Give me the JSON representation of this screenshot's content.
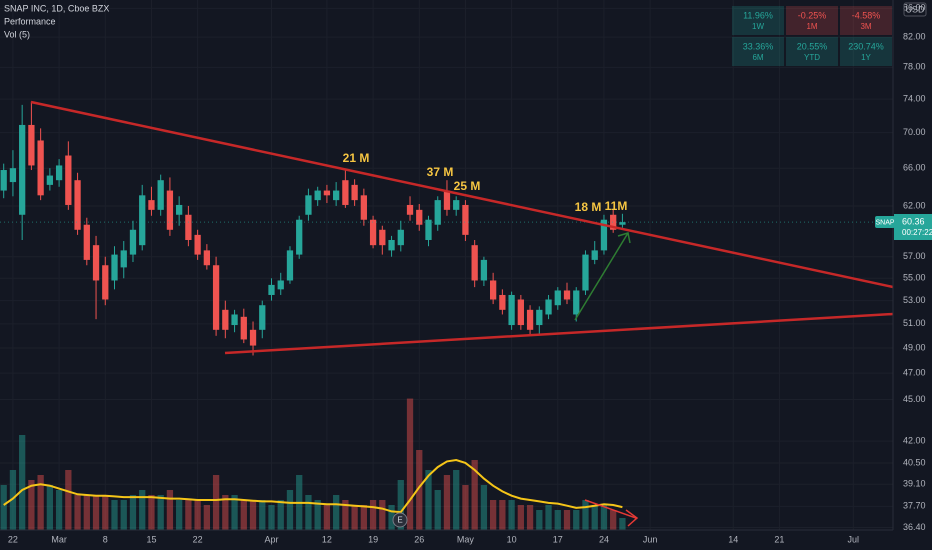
{
  "chart_data": {
    "type": "candlestick",
    "title": "SNAP INC, 1D, Cboe BZX",
    "indicator_labels": [
      "Performance",
      "Vol (5)"
    ],
    "symbol": "SNAP",
    "currency": "USD",
    "countdown": "00:27:22",
    "earnings_marker": "E",
    "log_scale": true,
    "grid": true,
    "up_color": "#26a69a",
    "down_color": "#ef5350",
    "ma_color": "#f5c518",
    "open": [
      63.6,
      64.5,
      61.1,
      70.9,
      69.1,
      64.2,
      64.7,
      67.4,
      64.7,
      60.1,
      58.1,
      56.2,
      54.8,
      56,
      57.2,
      58.1,
      62.6,
      61.6,
      63.6,
      61.1,
      61.1,
      59.1,
      57.6,
      56.2,
      52.2,
      50.9,
      51.6,
      50.5,
      50.5,
      53.5,
      54,
      54.8,
      57.2,
      61.1,
      62.6,
      63.6,
      62.6,
      64.7,
      64.2,
      63.1,
      60.6,
      59.6,
      57.6,
      58.1,
      62.1,
      61.6,
      58.6,
      60.1,
      63.6,
      61.6,
      62.1,
      58.1,
      54.8,
      54.8,
      53.5,
      50.9,
      53.1,
      52.2,
      50.9,
      51.8,
      52.6,
      53.9,
      51.8,
      53.9,
      56.7,
      57.6,
      61.1,
      60.1
    ],
    "high": [
      66.5,
      68,
      73.3,
      73.7,
      70.5,
      66,
      67,
      69,
      65.5,
      60.8,
      59,
      57,
      58,
      58.5,
      60.5,
      64.2,
      64,
      65.3,
      65,
      63,
      62,
      59.6,
      58.2,
      57,
      53,
      52.2,
      52.3,
      51.2,
      53,
      55,
      55.5,
      58,
      61,
      63.8,
      64,
      64.2,
      64.5,
      65.8,
      64.8,
      63.8,
      61,
      60,
      59,
      60.5,
      63,
      62.2,
      61,
      63,
      64.7,
      63,
      62.6,
      58.6,
      57,
      55.5,
      54,
      53.8,
      53.5,
      52.6,
      52.5,
      53.5,
      54.2,
      54.6,
      54.2,
      57.6,
      58.5,
      61.1,
      61.6,
      61.2
    ],
    "low": [
      62.8,
      63,
      58.6,
      65.8,
      62.6,
      63.6,
      64,
      61.6,
      59.1,
      56.2,
      51.4,
      52.6,
      54,
      55,
      56.5,
      57.6,
      61,
      61,
      59,
      60,
      58,
      56.7,
      55.8,
      50,
      49.8,
      50.3,
      49.4,
      48.4,
      49.8,
      53,
      53.5,
      54.5,
      56.8,
      60.5,
      62,
      62.3,
      62,
      61.8,
      62,
      60,
      57.8,
      57.2,
      57,
      57.5,
      60.5,
      59.5,
      58,
      59.5,
      61,
      61,
      58.5,
      54.2,
      54.3,
      52.7,
      51.8,
      50.5,
      50.5,
      50,
      50.1,
      51.4,
      52.2,
      52.7,
      51.2,
      53.5,
      56.3,
      57.2,
      59.3,
      59.8
    ],
    "close": [
      65.8,
      66,
      70.9,
      66.3,
      63.1,
      65.2,
      66.3,
      62.1,
      59.6,
      56.7,
      54.8,
      53.1,
      57.2,
      57.6,
      59.6,
      63.1,
      61.6,
      64.7,
      59.6,
      62.1,
      58.6,
      57.2,
      56.2,
      50.5,
      50.5,
      51.8,
      49.7,
      49.2,
      52.6,
      54.4,
      54.8,
      57.6,
      60.6,
      63.1,
      63.6,
      63.1,
      63.6,
      62.1,
      62.6,
      60.6,
      58.1,
      58.1,
      58.6,
      59.6,
      61.1,
      60.1,
      60.6,
      62.6,
      61.6,
      62.6,
      59.1,
      54.8,
      56.7,
      53.1,
      52.2,
      53.5,
      50.9,
      50.5,
      52.2,
      53.1,
      53.9,
      53.1,
      53.9,
      57.2,
      57.6,
      60.6,
      59.6,
      60.36
    ],
    "volume": [
      31.5,
      42,
      66.5,
      35,
      38.5,
      31.5,
      28,
      42,
      24.5,
      24.5,
      24.5,
      24.5,
      21,
      21,
      24.5,
      28,
      24.5,
      24.5,
      28,
      21,
      21,
      21,
      17.5,
      38.5,
      24.5,
      24.5,
      21,
      21,
      21,
      17.5,
      21,
      28,
      38.5,
      24.5,
      21,
      17.5,
      24.5,
      21,
      17.5,
      17.5,
      21,
      21,
      17.5,
      35,
      92,
      56,
      42,
      28,
      38.5,
      42,
      31.5,
      49,
      31.5,
      21,
      21,
      21,
      17.5,
      17.5,
      14,
      17.5,
      14,
      14,
      14,
      21,
      17.5,
      17.5,
      14,
      8.4
    ],
    "volume_ma": [
      17.5,
      22,
      28,
      31,
      32,
      31,
      29,
      27,
      25,
      24.5,
      24,
      24,
      23.5,
      23,
      23,
      23,
      23,
      22.5,
      22,
      22,
      21.5,
      21,
      21,
      21,
      21.5,
      21.5,
      21,
      20.5,
      20,
      20,
      19.5,
      19,
      19,
      19,
      18.5,
      18,
      18,
      17.5,
      17,
      16.5,
      16,
      15,
      13,
      12.5,
      21,
      30,
      38,
      44,
      48,
      49,
      47,
      42,
      36,
      31,
      27,
      24,
      22,
      21,
      20,
      19,
      18.5,
      17,
      15.5,
      16,
      17,
      18,
      17.5,
      16
    ],
    "vlim": [
      0,
      98
    ],
    "ylim": [
      36.25,
      87.2
    ],
    "yticks": [
      {
        "value": 86,
        "label": "86.00"
      },
      {
        "value": 82,
        "label": "82.00"
      },
      {
        "value": 78,
        "label": "78.00"
      },
      {
        "value": 74,
        "label": "74.00"
      },
      {
        "value": 70,
        "label": "70.00"
      },
      {
        "value": 66,
        "label": "66.00"
      },
      {
        "value": 62,
        "label": "62.00"
      },
      {
        "value": 57,
        "label": "57.00"
      },
      {
        "value": 55,
        "label": "55.00"
      },
      {
        "value": 53,
        "label": "53.00"
      },
      {
        "value": 51,
        "label": "51.00"
      },
      {
        "value": 49,
        "label": "49.00"
      },
      {
        "value": 47,
        "label": "47.00"
      },
      {
        "value": 45,
        "label": "45.00"
      },
      {
        "value": 42,
        "label": "42.00"
      },
      {
        "value": 40.5,
        "label": "40.50"
      },
      {
        "value": 39.1,
        "label": "39.10"
      },
      {
        "value": 37.7,
        "label": "37.70"
      },
      {
        "value": 36.4,
        "label": "36.40"
      }
    ],
    "xlim": [
      -0.4,
      96.3
    ],
    "xticks": [
      {
        "value": 1,
        "label": "22"
      },
      {
        "value": 6,
        "label": "Mar"
      },
      {
        "value": 11,
        "label": "8"
      },
      {
        "value": 16,
        "label": "15"
      },
      {
        "value": 21,
        "label": "22"
      },
      {
        "value": 29,
        "label": "Apr"
      },
      {
        "value": 35,
        "label": "12"
      },
      {
        "value": 40,
        "label": "19"
      },
      {
        "value": 45,
        "label": "26"
      },
      {
        "value": 50,
        "label": "May"
      },
      {
        "value": 55,
        "label": "10"
      },
      {
        "value": 60,
        "label": "17"
      },
      {
        "value": 65,
        "label": "24"
      },
      {
        "value": 70,
        "label": "Jun"
      },
      {
        "value": 79,
        "label": "14"
      },
      {
        "value": 84,
        "label": "21"
      },
      {
        "value": 92,
        "label": "Jul"
      }
    ],
    "annotations": [
      "21 M",
      "37 M",
      "25 M",
      "18 M",
      "11M"
    ],
    "performance": [
      {
        "value": "11.96%",
        "period": "1W",
        "color": "#26a69a"
      },
      {
        "value": "-0.25%",
        "period": "1M",
        "color": "#ef5350"
      },
      {
        "value": "-4.58%",
        "period": "3M",
        "color": "#ef5350"
      },
      {
        "value": "33.36%",
        "period": "6M",
        "color": "#26a69a"
      },
      {
        "value": "20.55%",
        "period": "YTD",
        "color": "#26a69a"
      },
      {
        "value": "230.74%",
        "period": "1Y",
        "color": "#26a69a"
      }
    ]
  }
}
